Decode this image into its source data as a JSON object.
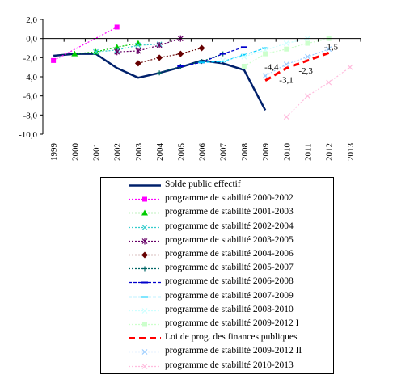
{
  "chart_data": {
    "type": "line",
    "title": "",
    "xlabel": "",
    "ylabel": "",
    "categories": [
      "1999",
      "2000",
      "2001",
      "2002",
      "2003",
      "2004",
      "2005",
      "2006",
      "2007",
      "2008",
      "2009",
      "2010",
      "2011",
      "2012",
      "2013"
    ],
    "y_ticks": [
      "2,0",
      "0,0",
      "-2,0",
      "-4,0",
      "-6,0",
      "-8,0",
      "-10,0"
    ],
    "ylim": [
      -10,
      2
    ],
    "grid": false,
    "legend_position": "bottom",
    "series": [
      {
        "name": "Solde public effectif",
        "color": "#00206b",
        "dash": "",
        "width": 2.5,
        "marker": "none",
        "values": [
          -1.8,
          -1.6,
          -1.6,
          -3.1,
          -4.1,
          -3.6,
          -3.0,
          -2.3,
          -2.6,
          -3.3,
          -7.5,
          null,
          null,
          null,
          null
        ]
      },
      {
        "name": "programme de stabilité 2000-2002",
        "color": "#ff00ff",
        "dash": "2,2",
        "width": 1.2,
        "marker": "square",
        "values": [
          null,
          null,
          null,
          null,
          null,
          null,
          null,
          null,
          null,
          null,
          null,
          null,
          null,
          null,
          null
        ],
        "points": [
          [
            0,
            -2.3
          ],
          [
            3,
            1.2
          ]
        ]
      },
      {
        "name": "programme de stabilité 2001-2003",
        "color": "#00cc00",
        "dash": "2,2",
        "width": 1.2,
        "marker": "triangle",
        "values": [
          null,
          -1.6,
          -1.4,
          -0.9,
          -0.5,
          null,
          null,
          null,
          null,
          null,
          null,
          null,
          null,
          null,
          null
        ]
      },
      {
        "name": "programme de stabilité 2002-2004",
        "color": "#33cccc",
        "dash": "2,2",
        "width": 1.2,
        "marker": "x",
        "values": [
          null,
          null,
          -1.4,
          -1.2,
          -0.7,
          -0.6,
          null,
          null,
          null,
          null,
          null,
          null,
          null,
          null,
          null
        ]
      },
      {
        "name": "programme de stabilité 2003-2005",
        "color": "#660066",
        "dash": "2,2",
        "width": 1.2,
        "marker": "star",
        "values": [
          null,
          null,
          null,
          -1.4,
          -1.3,
          -0.7,
          0.0,
          null,
          null,
          null,
          null,
          null,
          null,
          null,
          null
        ]
      },
      {
        "name": "programme de stabilité 2004-2006",
        "color": "#660000",
        "dash": "2,2",
        "width": 1.2,
        "marker": "diamond",
        "values": [
          null,
          null,
          null,
          null,
          -2.6,
          -2.0,
          -1.6,
          -1.0,
          null,
          null,
          null,
          null,
          null,
          null,
          null
        ]
      },
      {
        "name": "programme de stabilité 2005-2007",
        "color": "#006666",
        "dash": "2,2",
        "width": 1.2,
        "marker": "plus",
        "values": [
          null,
          null,
          null,
          null,
          null,
          -3.6,
          -2.9,
          -2.4,
          -1.6,
          null,
          null,
          null,
          null,
          null,
          null
        ]
      },
      {
        "name": "programme de stabilité 2006-2008",
        "color": "#0000cc",
        "dash": "4,2",
        "width": 1.2,
        "marker": "dash",
        "values": [
          null,
          null,
          null,
          null,
          null,
          null,
          -2.9,
          -2.5,
          -1.6,
          -0.9,
          null,
          null,
          null,
          null,
          null
        ]
      },
      {
        "name": "programme de stabilité 2007-2009",
        "color": "#00ccff",
        "dash": "4,2",
        "width": 1.2,
        "marker": "dash",
        "values": [
          null,
          null,
          null,
          null,
          null,
          null,
          null,
          -2.5,
          -2.4,
          -1.7,
          -1.0,
          null,
          null,
          null,
          null
        ]
      },
      {
        "name": "programme de stabilité 2008-2010",
        "color": "#ccffff",
        "dash": "2,2",
        "width": 1.2,
        "marker": "x",
        "values": [
          null,
          null,
          null,
          null,
          null,
          null,
          null,
          null,
          -2.3,
          -1.9,
          -1.2,
          -0.5,
          0.0,
          null,
          null
        ]
      },
      {
        "name": "programme de stabilité 2009-2012 I",
        "color": "#ccffcc",
        "dash": "2,2",
        "width": 1.2,
        "marker": "square",
        "values": [
          null,
          null,
          null,
          null,
          null,
          null,
          null,
          null,
          null,
          -2.9,
          -1.6,
          -1.1,
          -0.5,
          0.0,
          null
        ]
      },
      {
        "name": "Loi de prog. des finances publiques",
        "color": "#ff0000",
        "dash": "8,5",
        "width": 3,
        "marker": "none",
        "values": [
          null,
          null,
          null,
          null,
          null,
          null,
          null,
          null,
          null,
          null,
          -4.4,
          -3.1,
          -2.3,
          -1.5,
          null
        ]
      },
      {
        "name": "programme de stabilité 2009-2012 II",
        "color": "#99ccff",
        "dash": "2,2",
        "width": 1.2,
        "marker": "x",
        "values": [
          null,
          null,
          null,
          null,
          null,
          null,
          null,
          null,
          null,
          null,
          -3.9,
          -2.7,
          -1.9,
          -1.1,
          null
        ]
      },
      {
        "name": "programme de stabilité 2010-2013",
        "color": "#ffbbdd",
        "dash": "2,2",
        "width": 1.2,
        "marker": "x",
        "values": [
          null,
          null,
          null,
          null,
          null,
          null,
          null,
          null,
          null,
          null,
          null,
          -8.2,
          -6.0,
          -4.6,
          -3.0
        ]
      }
    ],
    "annotations": [
      "-4,4",
      "-3,1",
      "-2,3",
      "-1,5"
    ]
  }
}
